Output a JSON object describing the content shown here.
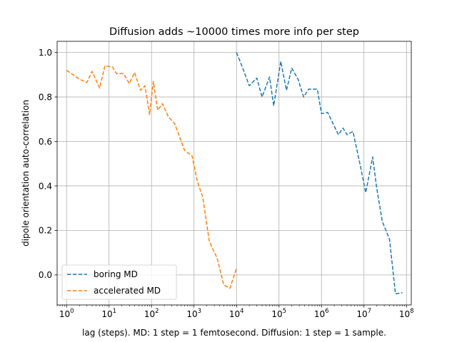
{
  "chart_data": {
    "type": "line",
    "title": "Diffusion adds ~10000 times more info per step",
    "xlabel": "lag (steps). MD: 1 step = 1 femtosecond. Diffusion: 1 step = 1 sample.",
    "ylabel": "dipole orientation auto-correlation",
    "xscale": "log",
    "xlim": [
      0.6,
      130000000
    ],
    "ylim": [
      -0.135,
      1.05
    ],
    "grid": true,
    "x_ticks": [
      {
        "base": "10",
        "exp": "0",
        "value": 1
      },
      {
        "base": "10",
        "exp": "1",
        "value": 10
      },
      {
        "base": "10",
        "exp": "2",
        "value": 100
      },
      {
        "base": "10",
        "exp": "3",
        "value": 1000
      },
      {
        "base": "10",
        "exp": "4",
        "value": 10000
      },
      {
        "base": "10",
        "exp": "5",
        "value": 100000
      },
      {
        "base": "10",
        "exp": "6",
        "value": 1000000
      },
      {
        "base": "10",
        "exp": "7",
        "value": 10000000
      },
      {
        "base": "10",
        "exp": "8",
        "value": 100000000
      }
    ],
    "y_ticks": [
      {
        "label": "0.0",
        "value": 0.0
      },
      {
        "label": "0.2",
        "value": 0.2
      },
      {
        "label": "0.4",
        "value": 0.4
      },
      {
        "label": "0.6",
        "value": 0.6
      },
      {
        "label": "0.8",
        "value": 0.8
      },
      {
        "label": "1.0",
        "value": 1.0
      }
    ],
    "legend_position": "lower-left",
    "series": [
      {
        "name": "boring MD",
        "color": "#1f77b4",
        "linestyle": "dashed",
        "points": [
          [
            10000,
            1.0
          ],
          [
            14000,
            0.93
          ],
          [
            20000,
            0.85
          ],
          [
            30000,
            0.885
          ],
          [
            40000,
            0.8
          ],
          [
            60000,
            0.89
          ],
          [
            75000,
            0.76
          ],
          [
            110000,
            0.96
          ],
          [
            150000,
            0.83
          ],
          [
            200000,
            0.93
          ],
          [
            280000,
            0.88
          ],
          [
            380000,
            0.8
          ],
          [
            500000,
            0.835
          ],
          [
            800000,
            0.835
          ],
          [
            1000000,
            0.725
          ],
          [
            1400000,
            0.73
          ],
          [
            2500000,
            0.63
          ],
          [
            3200000,
            0.66
          ],
          [
            4000000,
            0.63
          ],
          [
            5500000,
            0.645
          ],
          [
            8000000,
            0.5
          ],
          [
            11000000,
            0.37
          ],
          [
            16000000,
            0.53
          ],
          [
            20000000,
            0.39
          ],
          [
            27000000,
            0.24
          ],
          [
            40000000,
            0.16
          ],
          [
            55000000,
            -0.085
          ],
          [
            80000000,
            -0.08
          ]
        ]
      },
      {
        "name": "accelerated MD",
        "color": "#ff7f0e",
        "linestyle": "dashed",
        "points": [
          [
            1,
            0.92
          ],
          [
            2,
            0.88
          ],
          [
            3,
            0.865
          ],
          [
            4,
            0.915
          ],
          [
            6,
            0.84
          ],
          [
            8,
            0.94
          ],
          [
            12,
            0.935
          ],
          [
            15,
            0.905
          ],
          [
            22,
            0.905
          ],
          [
            30,
            0.86
          ],
          [
            40,
            0.91
          ],
          [
            55,
            0.83
          ],
          [
            70,
            0.85
          ],
          [
            90,
            0.72
          ],
          [
            110,
            0.87
          ],
          [
            140,
            0.74
          ],
          [
            180,
            0.77
          ],
          [
            250,
            0.71
          ],
          [
            350,
            0.68
          ],
          [
            600,
            0.56
          ],
          [
            900,
            0.535
          ],
          [
            1200,
            0.42
          ],
          [
            1600,
            0.35
          ],
          [
            2300,
            0.15
          ],
          [
            3500,
            0.075
          ],
          [
            5000,
            -0.045
          ],
          [
            7000,
            -0.06
          ],
          [
            10000,
            0.03
          ]
        ]
      }
    ]
  }
}
